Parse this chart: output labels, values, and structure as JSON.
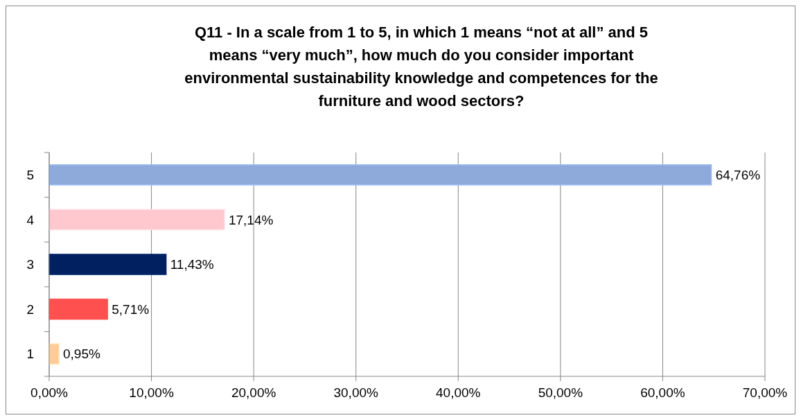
{
  "chart_data": {
    "type": "bar",
    "orientation": "horizontal",
    "title": "Q11 - In a scale from 1 to 5, in which 1 means “not at all” and 5 means “very much”, how much do you consider important environmental sustainability knowledge and competences for the furniture and wood sectors?",
    "categories": [
      "5",
      "4",
      "3",
      "2",
      "1"
    ],
    "values": [
      64.76,
      17.14,
      11.43,
      5.71,
      0.95
    ],
    "colors": [
      "#8eaadb",
      "#ffc7ce",
      "#002060",
      "#ff5050",
      "#ffcc99"
    ],
    "value_labels": [
      "64,76%",
      "17,14%",
      "11,43%",
      "5,71%",
      "0,95%"
    ],
    "xlim": [
      0,
      70
    ],
    "xticks": [
      {
        "value": 0,
        "label": "0,00%"
      },
      {
        "value": 10,
        "label": "10,00%"
      },
      {
        "value": 20,
        "label": "20,00%"
      },
      {
        "value": 30,
        "label": "30,00%"
      },
      {
        "value": 40,
        "label": "40,00%"
      },
      {
        "value": 50,
        "label": "50,00%"
      },
      {
        "value": 60,
        "label": "60,00%"
      },
      {
        "value": 70,
        "label": "70,00%"
      }
    ],
    "grid": "x"
  }
}
